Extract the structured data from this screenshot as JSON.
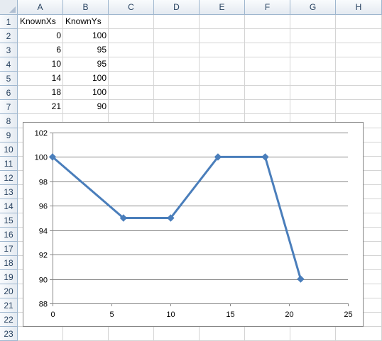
{
  "sheet": {
    "columns": [
      "A",
      "B",
      "C",
      "D",
      "E",
      "F",
      "G",
      "H"
    ],
    "rows": [
      "1",
      "2",
      "3",
      "4",
      "5",
      "6",
      "7",
      "8",
      "9",
      "10",
      "11",
      "12",
      "13",
      "14",
      "15",
      "16",
      "17",
      "18",
      "19",
      "20",
      "21",
      "22",
      "23"
    ],
    "cells": [
      [
        "KnownXs",
        "KnownYs"
      ],
      [
        "0",
        "100"
      ],
      [
        "6",
        "95"
      ],
      [
        "10",
        "95"
      ],
      [
        "14",
        "100"
      ],
      [
        "18",
        "100"
      ],
      [
        "21",
        "90"
      ]
    ]
  },
  "chart_data": {
    "type": "line",
    "x": [
      0,
      6,
      10,
      14,
      18,
      21
    ],
    "series": [
      {
        "values": [
          100,
          95,
          95,
          100,
          100,
          90
        ],
        "color": "#4a7ebb",
        "marker": "diamond"
      }
    ],
    "xlim": [
      0,
      25
    ],
    "xticks": [
      "0",
      "5",
      "10",
      "15",
      "20",
      "25"
    ],
    "ylim": [
      88,
      102
    ],
    "yticks": [
      "88",
      "90",
      "92",
      "94",
      "96",
      "98",
      "100",
      "102"
    ],
    "grid": true,
    "legend": "none",
    "title": "",
    "xlabel": "",
    "ylabel": ""
  }
}
